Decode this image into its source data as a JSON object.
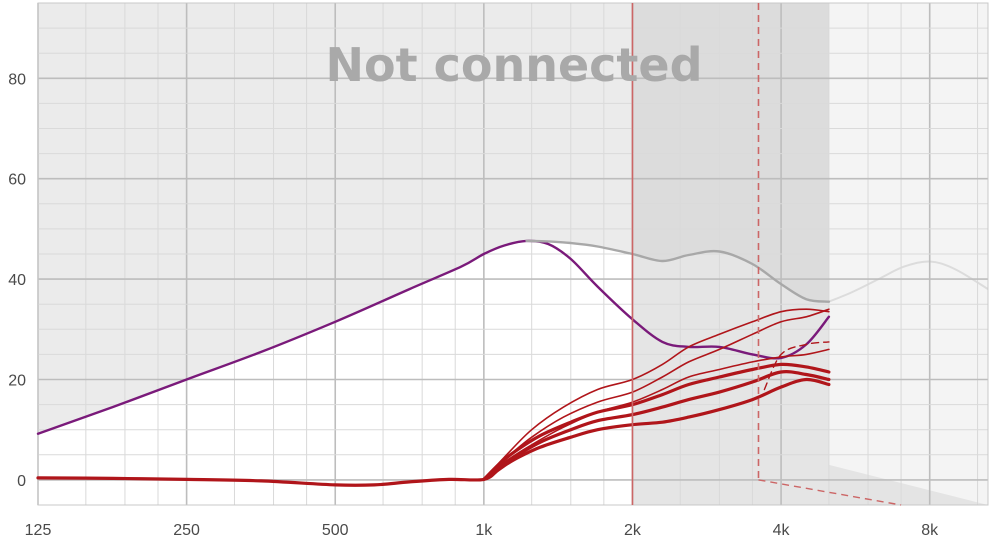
{
  "status": "Not connected",
  "chart_data": {
    "type": "line",
    "title": "",
    "xlabel": "",
    "ylabel": "",
    "x_scale": "log2",
    "xlim": [
      125,
      10500
    ],
    "ylim": [
      -5,
      95
    ],
    "grid": true,
    "x_ticks": [
      125,
      250,
      500,
      1000,
      2000,
      4000,
      8000
    ],
    "x_tick_labels": [
      "125",
      "250",
      "500",
      "1k",
      "2k",
      "4k",
      "8k"
    ],
    "y_ticks": [
      0,
      20,
      40,
      60,
      80
    ],
    "y_tick_labels": [
      "0",
      "20",
      "40",
      "60",
      "80"
    ],
    "colors": {
      "purple": "#7a1a7a",
      "red": "#b0151a",
      "gray_curve": "#a8a8a8",
      "marker": "#cc6666"
    },
    "markers": {
      "solid_line_hz": 2000,
      "dashed_line_hz": 3600
    },
    "series": [
      {
        "color": "purple",
        "width": 2.4,
        "x": [
          125,
          177,
          250,
          354,
          500,
          707,
          900,
          1000,
          1100,
          1220,
          1350,
          1500,
          1700,
          2000,
          2300,
          2600,
          3000,
          3500,
          4000,
          4500,
          5000
        ],
        "y": [
          9.2,
          14.5,
          20,
          25.5,
          31.5,
          38,
          42.5,
          45,
          46.7,
          47.6,
          47,
          44,
          38.5,
          32,
          27.5,
          26.5,
          26.5,
          25,
          24.3,
          27,
          32.5
        ]
      },
      {
        "color": "gray_curve",
        "width": 2.4,
        "x": [
          1220,
          1350,
          1500,
          1700,
          2000,
          2300,
          2600,
          3000,
          3500,
          4000,
          4500,
          5000
        ],
        "y": [
          47.6,
          47.5,
          47.2,
          46.5,
          45,
          43.6,
          44.8,
          45.5,
          43,
          39,
          36,
          35.5
        ]
      },
      {
        "color": "red",
        "width": 3.2,
        "x": [
          125,
          177,
          250,
          354,
          500,
          600,
          707,
          850,
          1000,
          1070,
          1150,
          1300,
          1500,
          1700,
          2000,
          2300,
          2600,
          3000,
          3500,
          4000,
          4500,
          5000
        ],
        "y": [
          0.4,
          0.3,
          0.1,
          -0.2,
          -1.0,
          -1.0,
          -0.4,
          0.1,
          0.1,
          2,
          4,
          6.5,
          8.5,
          10,
          11,
          11.5,
          12.5,
          14,
          16,
          18.5,
          20,
          19
        ]
      },
      {
        "color": "red",
        "width": 3.2,
        "x": [
          1000,
          1070,
          1150,
          1300,
          1500,
          1700,
          2000,
          2300,
          2600,
          3000,
          3500,
          4000,
          4500,
          5000
        ],
        "y": [
          0.1,
          2.5,
          4.5,
          7.5,
          10,
          11.8,
          13,
          14.5,
          16,
          17.5,
          19.5,
          21.5,
          21,
          20
        ]
      },
      {
        "color": "red",
        "width": 3.2,
        "x": [
          1000,
          1070,
          1150,
          1300,
          1500,
          1700,
          2000,
          2300,
          2600,
          3000,
          3500,
          4000,
          4500,
          5000
        ],
        "y": [
          0.1,
          3,
          5.5,
          8.8,
          11.5,
          13.5,
          15,
          17,
          19,
          20.5,
          22,
          23,
          22.5,
          21.5
        ]
      },
      {
        "color": "red",
        "width": 1.6,
        "x": [
          1000,
          1100,
          1250,
          1450,
          1700,
          2000,
          2300,
          2600,
          3000,
          3500,
          4000,
          4500,
          5000
        ],
        "y": [
          0.1,
          3.5,
          7,
          10.5,
          13.5,
          15.5,
          18,
          20.5,
          22,
          23.5,
          24.5,
          25,
          26
        ]
      },
      {
        "color": "red",
        "width": 1.6,
        "x": [
          1000,
          1100,
          1250,
          1450,
          1700,
          2000,
          2300,
          2600,
          3000,
          3500,
          4000,
          4500,
          5000
        ],
        "y": [
          0.1,
          4,
          8.5,
          12.5,
          15.5,
          17.5,
          20.5,
          23.5,
          26,
          29,
          31.5,
          32.5,
          34
        ]
      },
      {
        "color": "red",
        "width": 1.6,
        "x": [
          1000,
          1100,
          1250,
          1450,
          1700,
          2000,
          2300,
          2600,
          3000,
          3500,
          4000,
          4500,
          5000
        ],
        "y": [
          0.1,
          4.5,
          10,
          14.5,
          18,
          20,
          23,
          26.5,
          29,
          31.5,
          33.5,
          34,
          33.5
        ]
      },
      {
        "color": "red",
        "width": 1.4,
        "dashed": true,
        "x": [
          3700,
          4000,
          4500,
          5000
        ],
        "y": [
          18,
          25,
          27,
          27.5
        ]
      }
    ]
  }
}
